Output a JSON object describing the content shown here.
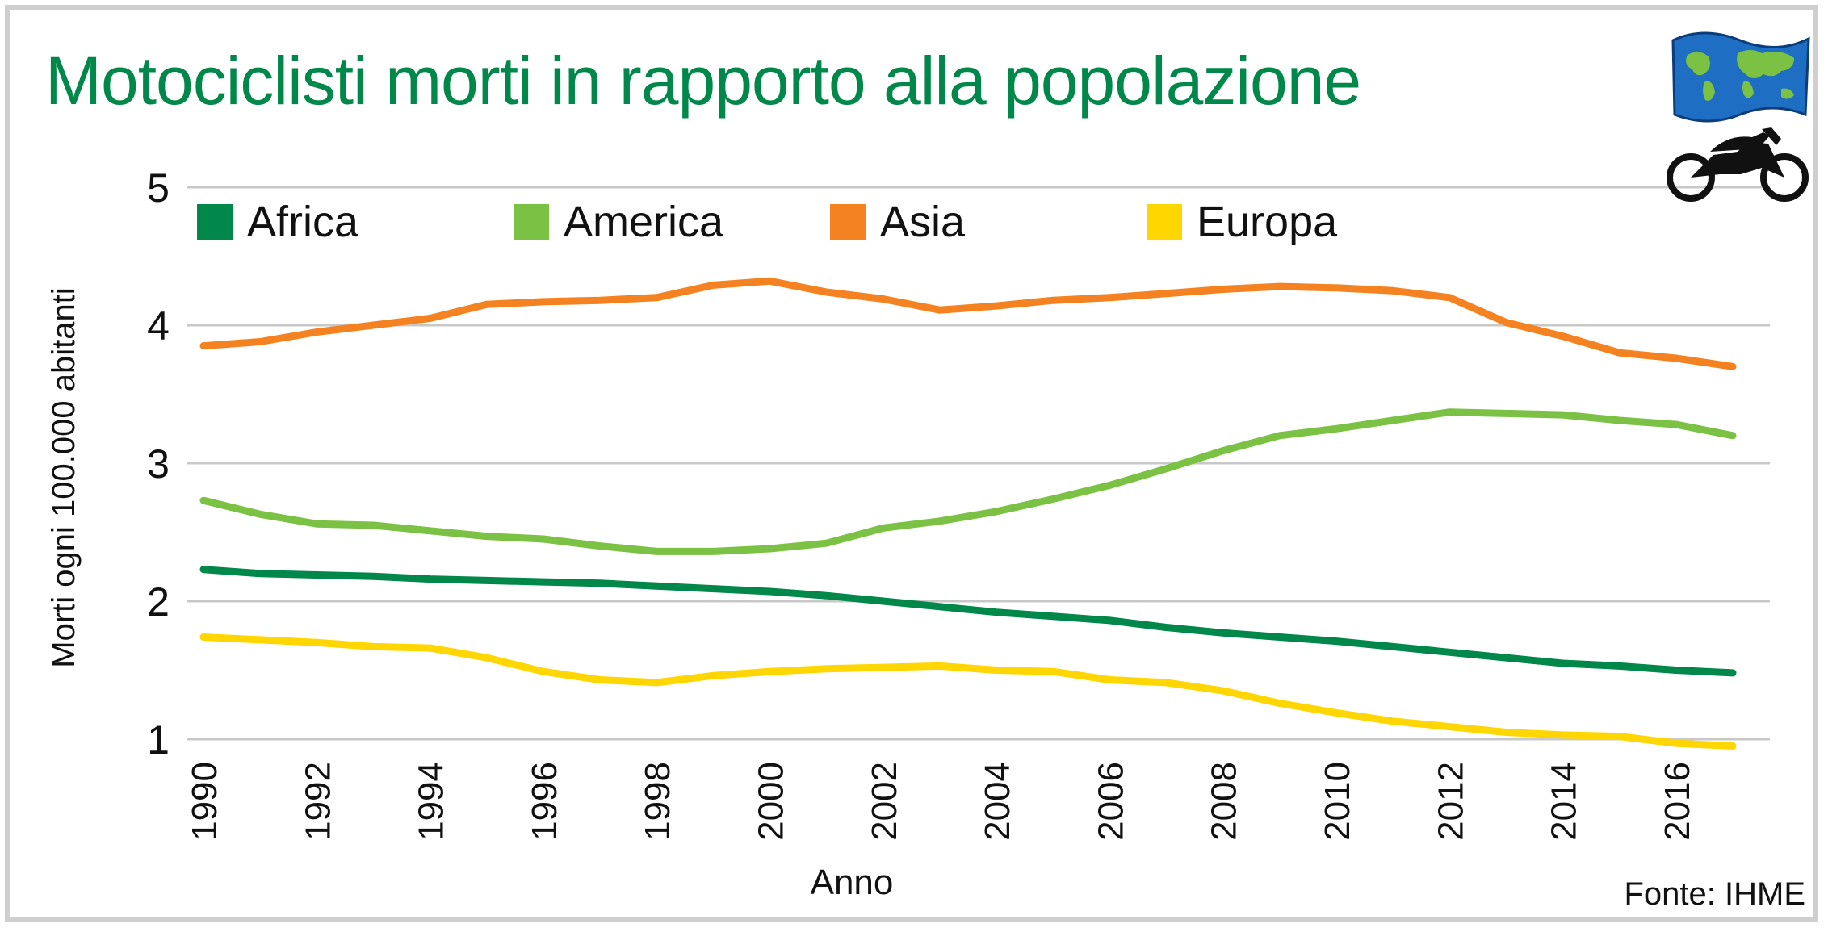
{
  "chart_data": {
    "type": "line",
    "title": "Motociclisti morti in rapporto alla popolazione",
    "xlabel": "Anno",
    "ylabel": "Morti ogni 100.000 abitanti",
    "source": "Fonte: IHME",
    "x": [
      1990,
      1991,
      1992,
      1993,
      1994,
      1995,
      1996,
      1997,
      1998,
      1999,
      2000,
      2001,
      2002,
      2003,
      2004,
      2005,
      2006,
      2007,
      2008,
      2009,
      2010,
      2011,
      2012,
      2013,
      2014,
      2015,
      2016,
      2017
    ],
    "xticks": [
      "1990",
      "1992",
      "1994",
      "1996",
      "1998",
      "2000",
      "2002",
      "2004",
      "2006",
      "2008",
      "2010",
      "2012",
      "2014",
      "2016"
    ],
    "yticks": [
      "1",
      "2",
      "3",
      "4",
      "5"
    ],
    "ylim": [
      1,
      5
    ],
    "grid": true,
    "legend_position": "top",
    "series": [
      {
        "name": "Africa",
        "color": "#00874a",
        "values": [
          2.23,
          2.2,
          2.19,
          2.18,
          2.16,
          2.15,
          2.14,
          2.13,
          2.11,
          2.09,
          2.07,
          2.04,
          2.0,
          1.96,
          1.92,
          1.89,
          1.86,
          1.81,
          1.77,
          1.74,
          1.71,
          1.67,
          1.63,
          1.59,
          1.55,
          1.53,
          1.5,
          1.48
        ]
      },
      {
        "name": "America",
        "color": "#7bc143",
        "values": [
          2.73,
          2.63,
          2.56,
          2.55,
          2.51,
          2.47,
          2.45,
          2.4,
          2.36,
          2.36,
          2.38,
          2.42,
          2.53,
          2.58,
          2.65,
          2.74,
          2.84,
          2.96,
          3.09,
          3.2,
          3.25,
          3.31,
          3.37,
          3.36,
          3.35,
          3.31,
          3.28,
          3.2
        ]
      },
      {
        "name": "Asia",
        "color": "#f58220",
        "values": [
          3.85,
          3.88,
          3.95,
          4.0,
          4.05,
          4.15,
          4.17,
          4.18,
          4.2,
          4.29,
          4.32,
          4.24,
          4.19,
          4.11,
          4.14,
          4.18,
          4.2,
          4.23,
          4.26,
          4.28,
          4.27,
          4.25,
          4.2,
          4.02,
          3.92,
          3.8,
          3.76,
          3.7
        ]
      },
      {
        "name": "Europa",
        "color": "#ffd600",
        "values": [
          1.74,
          1.72,
          1.7,
          1.67,
          1.66,
          1.59,
          1.49,
          1.43,
          1.41,
          1.46,
          1.49,
          1.51,
          1.52,
          1.53,
          1.5,
          1.49,
          1.43,
          1.41,
          1.35,
          1.26,
          1.19,
          1.13,
          1.09,
          1.05,
          1.03,
          1.02,
          0.97,
          0.95
        ]
      }
    ]
  },
  "icons": {
    "flag": "world-flag-icon",
    "motorcycle": "motorcycle-icon",
    "flag_color": "#1e6fc4",
    "land_color": "#7bc143"
  }
}
